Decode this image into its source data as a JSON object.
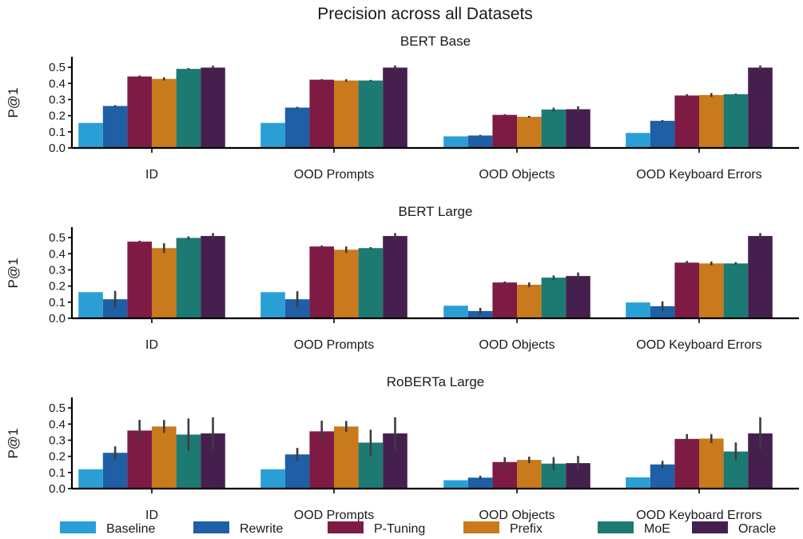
{
  "chart_data": {
    "type": "bar",
    "title": "Precision across all Datasets",
    "series_names": [
      "Baseline",
      "Rewrite",
      "P-Tuning",
      "Prefix",
      "MoE",
      "Oracle"
    ],
    "colors": [
      "#2a9fd6",
      "#1f5fa6",
      "#7d1b45",
      "#c97a1c",
      "#1c7a72",
      "#45204f"
    ],
    "legend_position": "bottom",
    "panels": [
      {
        "title": "BERT Base",
        "ylabel": "P@1",
        "ylim": [
          0,
          0.56
        ],
        "yticks": [
          "0.0",
          "0.1",
          "0.2",
          "0.3",
          "0.4",
          "0.5"
        ],
        "categories": [
          "ID",
          "OOD Prompts",
          "OOD Objects",
          "OOD Keyboard Errors"
        ],
        "values": [
          [
            0.155,
            0.26,
            0.443,
            0.428,
            0.49,
            0.498
          ],
          [
            0.155,
            0.25,
            0.423,
            0.418,
            0.418,
            0.498
          ],
          [
            0.072,
            0.077,
            0.205,
            0.193,
            0.238,
            0.24
          ],
          [
            0.093,
            0.168,
            0.325,
            0.328,
            0.333,
            0.498
          ]
        ],
        "errors": [
          [
            0,
            0.005,
            0.006,
            0.01,
            0.005,
            0.012
          ],
          [
            0,
            0.005,
            0.004,
            0.008,
            0.004,
            0.013
          ],
          [
            0,
            0.004,
            0.004,
            0.006,
            0.012,
            0.018
          ],
          [
            0,
            0.005,
            0.008,
            0.012,
            0.004,
            0.013
          ]
        ]
      },
      {
        "title": "BERT Large",
        "ylabel": "P@1",
        "ylim": [
          0,
          0.56
        ],
        "yticks": [
          "0.0",
          "0.1",
          "0.2",
          "0.3",
          "0.4",
          "0.5"
        ],
        "categories": [
          "ID",
          "OOD Prompts",
          "OOD Objects",
          "OOD Keyboard Errors"
        ],
        "values": [
          [
            0.162,
            0.118,
            0.475,
            0.435,
            0.498,
            0.51
          ],
          [
            0.162,
            0.118,
            0.445,
            0.425,
            0.435,
            0.51
          ],
          [
            0.078,
            0.045,
            0.222,
            0.208,
            0.252,
            0.262
          ],
          [
            0.098,
            0.075,
            0.345,
            0.34,
            0.34,
            0.51
          ]
        ],
        "errors": [
          [
            0,
            0.052,
            0.006,
            0.03,
            0.01,
            0.018
          ],
          [
            0,
            0.05,
            0.006,
            0.02,
            0.006,
            0.018
          ],
          [
            0,
            0.02,
            0.006,
            0.014,
            0.014,
            0.022
          ],
          [
            0,
            0.03,
            0.01,
            0.012,
            0.008,
            0.018
          ]
        ]
      },
      {
        "title": "RoBERTa Large",
        "ylabel": "P@1",
        "ylim": [
          0,
          0.56
        ],
        "yticks": [
          "0.0",
          "0.1",
          "0.2",
          "0.3",
          "0.4",
          "0.5"
        ],
        "categories": [
          "ID",
          "OOD Prompts",
          "OOD Objects",
          "OOD Keyboard Errors"
        ],
        "values": [
          [
            0.12,
            0.222,
            0.36,
            0.385,
            0.335,
            0.342
          ],
          [
            0.12,
            0.212,
            0.355,
            0.385,
            0.285,
            0.342
          ],
          [
            0.052,
            0.068,
            0.165,
            0.178,
            0.155,
            0.158
          ],
          [
            0.07,
            0.15,
            0.308,
            0.31,
            0.23,
            0.342
          ]
        ],
        "errors": [
          [
            0,
            0.04,
            0.066,
            0.04,
            0.1,
            0.1
          ],
          [
            0,
            0.04,
            0.066,
            0.034,
            0.08,
            0.1
          ],
          [
            0,
            0.012,
            0.03,
            0.02,
            0.04,
            0.044
          ],
          [
            0,
            0.022,
            0.03,
            0.028,
            0.056,
            0.1
          ]
        ]
      }
    ]
  }
}
